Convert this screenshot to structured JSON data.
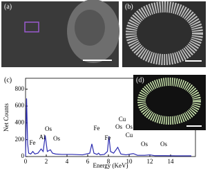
{
  "panels": {
    "a": "(a)",
    "b": "(b)",
    "c": "(c)",
    "d": "(d)"
  },
  "chart_data": {
    "type": "line",
    "xlabel": "Energy (KeV)",
    "ylabel": "Net Counts",
    "x": [
      0,
      0.1,
      0.2,
      0.3,
      0.5,
      0.7,
      0.9,
      1.2,
      1.5,
      1.7,
      1.9,
      2.1,
      2.4,
      2.6,
      2.9,
      3.5,
      4.5,
      5.5,
      6.2,
      6.4,
      6.6,
      6.9,
      7.05,
      7.2,
      7.6,
      7.9,
      8.05,
      8.2,
      8.5,
      8.9,
      9.2,
      9.7,
      10.4,
      10.8,
      11.5,
      12.0,
      12.5,
      13.5,
      15,
      16
    ],
    "series": [
      {
        "color": "#2b2bb0",
        "values": [
          0,
          690,
          150,
          40,
          30,
          60,
          30,
          40,
          90,
          60,
          250,
          60,
          80,
          40,
          30,
          25,
          25,
          20,
          40,
          150,
          40,
          25,
          40,
          20,
          25,
          60,
          240,
          60,
          40,
          110,
          30,
          20,
          35,
          15,
          15,
          20,
          10,
          10,
          8,
          8
        ]
      }
    ],
    "xlim": [
      0,
      16.4
    ],
    "ylim": [
      0,
      930
    ],
    "xticks": [
      0,
      2,
      4,
      6,
      8,
      10,
      12,
      14
    ],
    "yticks": [
      0,
      200,
      400,
      600,
      800
    ],
    "annotations": [
      "Fe",
      "Al",
      "Os",
      "Os",
      "Fe",
      "Fe",
      "Cu",
      "Os",
      "Os",
      "Cu",
      "Os",
      "Os"
    ]
  }
}
